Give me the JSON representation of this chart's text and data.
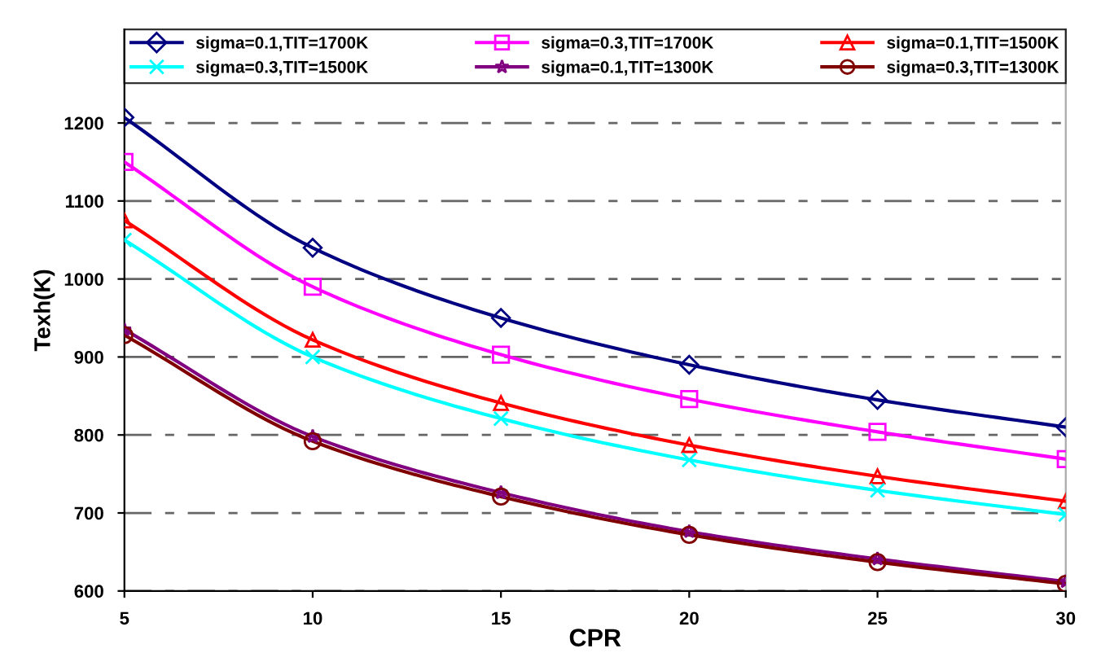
{
  "chart_data": {
    "type": "line",
    "xlabel": "CPR",
    "ylabel": "Texh(K)",
    "x": [
      5,
      10,
      15,
      20,
      25,
      30
    ],
    "xlim": [
      5,
      30
    ],
    "xticks": [
      5,
      10,
      15,
      20,
      25,
      30
    ],
    "ylim": [
      600,
      1320
    ],
    "yticks": [
      600,
      700,
      800,
      900,
      1000,
      1100,
      1200
    ],
    "grid": "y",
    "legend": "top",
    "line_style": "solid",
    "series": [
      {
        "name": "sigma=0.1,TIT=1700K",
        "color": "#000080",
        "marker": "diamond",
        "values": [
          1207,
          1040,
          950,
          890,
          845,
          810
        ]
      },
      {
        "name": "sigma=0.3,TIT=1700K",
        "color": "#ff00ff",
        "marker": "square",
        "values": [
          1150,
          990,
          903,
          846,
          804,
          769
        ]
      },
      {
        "name": "sigma=0.1,TIT=1500K",
        "color": "#ff0000",
        "marker": "triangle",
        "values": [
          1075,
          922,
          841,
          787,
          747,
          715
        ]
      },
      {
        "name": "sigma=0.3,TIT=1500K",
        "color": "#00ffff",
        "marker": "cross",
        "values": [
          1050,
          900,
          821,
          768,
          729,
          698
        ]
      },
      {
        "name": "sigma=0.1,TIT=1300K",
        "color": "#800080",
        "marker": "star",
        "values": [
          935,
          798,
          726,
          676,
          641,
          612
        ]
      },
      {
        "name": "sigma=0.3,TIT=1300K",
        "color": "#800000",
        "marker": "circle",
        "values": [
          928,
          792,
          721,
          672,
          637,
          609
        ]
      }
    ]
  }
}
